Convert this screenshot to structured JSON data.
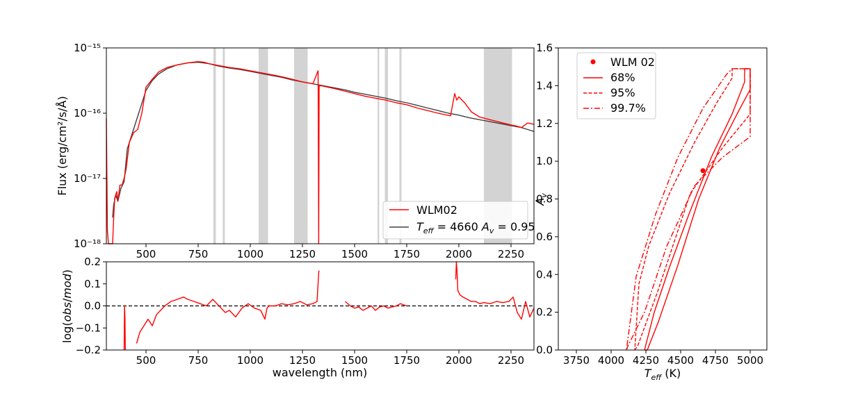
{
  "chart_data": [
    {
      "type": "line",
      "yscale": "log",
      "ylabel": "Flux (erg/cm²/s/Å)",
      "xlim": [
        310,
        2360
      ],
      "ylim_exp": [
        -18,
        -15
      ],
      "xticks": [
        500,
        750,
        1000,
        1250,
        1500,
        1750,
        2000,
        2250
      ],
      "ytick_labels": [
        "10⁻¹⁸",
        "10⁻¹⁷",
        "10⁻¹⁶",
        "10⁻¹⁵"
      ],
      "legend_loc": "lower-right",
      "masked_bands": [
        [
          823,
          835
        ],
        [
          868,
          878
        ],
        [
          1040,
          1085
        ],
        [
          1210,
          1275
        ],
        [
          1610,
          1618
        ],
        [
          1645,
          1660
        ],
        [
          1715,
          1725
        ],
        [
          2120,
          2255
        ]
      ],
      "series": [
        {
          "name": "WLM02",
          "color": "#ff0000",
          "x": [
            310,
            315,
            320,
            330,
            340,
            345,
            350,
            360,
            365,
            375,
            385,
            395,
            405,
            420,
            440,
            460,
            480,
            500,
            530,
            560,
            600,
            650,
            700,
            750,
            780,
            800,
            850,
            900,
            950,
            1000,
            1050,
            1100,
            1150,
            1200,
            1250,
            1300,
            1325,
            1328,
            1330,
            1332,
            1340,
            1400,
            1450,
            1500,
            1550,
            1600,
            1650,
            1700,
            1750,
            1800,
            1850,
            1900,
            1960,
            1980,
            1990,
            2000,
            2030,
            2060,
            2100,
            2150,
            2200,
            2250,
            2280,
            2300,
            2330,
            2360
          ],
          "y": [
            -16.08,
            -17.8,
            -18.0,
            -18.0,
            -18.0,
            -17.6,
            -17.3,
            -17.2,
            -17.35,
            -17.1,
            -17.1,
            -17.0,
            -16.85,
            -16.45,
            -16.3,
            -16.25,
            -16.0,
            -15.6,
            -15.48,
            -15.37,
            -15.3,
            -15.26,
            -15.23,
            -15.21,
            -15.22,
            -15.24,
            -15.27,
            -15.3,
            -15.32,
            -15.35,
            -15.38,
            -15.41,
            -15.44,
            -15.48,
            -15.52,
            -15.55,
            -15.35,
            -18.0,
            -15.58,
            -15.58,
            -15.58,
            -15.62,
            -15.66,
            -15.7,
            -15.74,
            -15.77,
            -15.8,
            -15.84,
            -15.87,
            -15.92,
            -15.96,
            -16.0,
            -16.04,
            -15.7,
            -15.8,
            -15.75,
            -15.85,
            -15.98,
            -16.06,
            -16.1,
            -16.14,
            -16.18,
            -16.2,
            -16.22,
            -16.15,
            -16.17
          ]
        },
        {
          "name": "T_eff = 4660 A_v = 0.95",
          "color": "#404040",
          "x": [
            340,
            345,
            355,
            365,
            380,
            395,
            410,
            430,
            450,
            470,
            500,
            530,
            560,
            600,
            650,
            700,
            750,
            800,
            850,
            900,
            950,
            1000,
            1050,
            1100,
            1150,
            1200,
            1250,
            1300,
            1350,
            1400,
            1450,
            1500,
            1550,
            1600,
            1650,
            1700,
            1750,
            1800,
            1850,
            1900,
            1950,
            2000,
            2050,
            2100,
            2150,
            2200,
            2250,
            2300,
            2330,
            2360
          ],
          "y": [
            -17.6,
            -17.4,
            -17.25,
            -17.35,
            -17.15,
            -17.05,
            -16.55,
            -16.35,
            -16.15,
            -15.95,
            -15.65,
            -15.5,
            -15.4,
            -15.32,
            -15.26,
            -15.23,
            -15.22,
            -15.24,
            -15.28,
            -15.31,
            -15.33,
            -15.36,
            -15.39,
            -15.42,
            -15.45,
            -15.49,
            -15.52,
            -15.55,
            -15.58,
            -15.61,
            -15.64,
            -15.68,
            -15.71,
            -15.74,
            -15.77,
            -15.81,
            -15.84,
            -15.88,
            -15.92,
            -15.96,
            -16.0,
            -16.03,
            -16.07,
            -16.1,
            -16.13,
            -16.16,
            -16.19,
            -16.22,
            -16.25,
            -16.28
          ]
        }
      ]
    },
    {
      "type": "line",
      "xlabel": "wavelength (nm)",
      "ylabel": "log(obs/mod)",
      "xlim": [
        310,
        2360
      ],
      "ylim": [
        -0.2,
        0.2
      ],
      "xticks": [
        500,
        750,
        1000,
        1250,
        1500,
        1750,
        2000,
        2250
      ],
      "yticks": [
        -0.2,
        -0.1,
        0.0,
        0.1,
        0.2
      ],
      "ytick_labels": [
        "−0.2",
        "−0.1",
        "0.0",
        "0.1",
        "0.2"
      ],
      "reference_line": 0.0,
      "series": [
        {
          "name": "",
          "color": "#ff0000",
          "segments": [
            {
              "x": [
                395,
                397,
                399,
                401
              ],
              "y": [
                -0.2,
                0.0,
                -0.05,
                -0.2
              ]
            },
            {
              "x": [
                455,
                470,
                490,
                510,
                530,
                550,
                570,
                590,
                620,
                650,
                680,
                700,
                730,
                760,
                790,
                820,
                850,
                880,
                900,
                930,
                960,
                990,
                1020,
                1050,
                1070,
                1080,
                1090,
                1120,
                1150,
                1180,
                1210,
                1240,
                1270,
                1300,
                1320,
                1328,
                1330
              ],
              "y": [
                -0.17,
                -0.12,
                -0.09,
                -0.06,
                -0.09,
                -0.04,
                -0.02,
                0.0,
                0.02,
                0.03,
                0.04,
                0.03,
                0.02,
                0.01,
                0.0,
                0.03,
                0.0,
                -0.03,
                -0.02,
                -0.05,
                -0.01,
                0.01,
                -0.01,
                -0.02,
                -0.06,
                -0.01,
                0.0,
                0.0,
                0.01,
                0.005,
                0.01,
                0.02,
                0.005,
                0.01,
                0.02,
                0.15,
                0.16
              ]
            },
            {
              "x": [
                1455,
                1480,
                1500,
                1520,
                1540,
                1560,
                1580,
                1600,
                1620,
                1640,
                1660,
                1680,
                1700,
                1720,
                1750
              ],
              "y": [
                0.02,
                0.0,
                -0.01,
                -0.005,
                -0.02,
                -0.01,
                0.0,
                -0.02,
                -0.005,
                0.0,
                -0.01,
                -0.005,
                0.0,
                0.01,
                0.0
              ]
            },
            {
              "x": [
                1985,
                1988,
                1991,
                1995,
                2005,
                2020,
                2040,
                2060,
                2080,
                2100,
                2120,
                2150,
                2180,
                2210,
                2240,
                2260,
                2280,
                2300,
                2320,
                2340,
                2360
              ],
              "y": [
                0.12,
                0.2,
                0.16,
                0.07,
                0.05,
                0.04,
                0.03,
                0.02,
                0.02,
                0.01,
                0.015,
                0.01,
                0.02,
                0.015,
                0.02,
                0.04,
                -0.03,
                -0.06,
                0.02,
                -0.05,
                -0.01
              ]
            }
          ]
        }
      ]
    },
    {
      "type": "line",
      "xlabel": "T_eff (K)",
      "ylabel": "A_v",
      "xlim": [
        3620,
        5120
      ],
      "ylim": [
        0.0,
        1.6
      ],
      "xticks": [
        3750,
        4000,
        4250,
        4500,
        4750,
        5000
      ],
      "yticks": [
        0.0,
        0.2,
        0.4,
        0.6,
        0.8,
        1.0,
        1.2,
        1.4,
        1.6
      ],
      "ytick_labels": [
        "0.0",
        "0.2",
        "0.4",
        "0.6",
        "0.8",
        "1.0",
        "1.2",
        "1.4",
        "1.6"
      ],
      "legend_loc": "upper-left",
      "series": [
        {
          "name": "WLM 02",
          "style": "point",
          "color": "#ff0000",
          "x": [
            4660
          ],
          "y": [
            0.95
          ]
        },
        {
          "name": "68%",
          "style": "solid",
          "color": "#ff0000",
          "x": [
            4240,
            4260,
            4340,
            4480,
            4630,
            4780,
            4920,
            5000,
            5000,
            4960,
            4960,
            4870,
            4720,
            4560,
            4420,
            4310,
            4240
          ],
          "y": [
            0.0,
            0.0,
            0.15,
            0.45,
            0.8,
            1.07,
            1.27,
            1.38,
            1.49,
            1.49,
            1.42,
            1.25,
            1.02,
            0.72,
            0.44,
            0.2,
            0.0
          ]
        },
        {
          "name": "95%",
          "style": "dashed",
          "color": "#ff0000",
          "x": [
            4170,
            4190,
            4240,
            4330,
            4570,
            4800,
            5000,
            5000,
            4870,
            4870,
            4760,
            4600,
            4420,
            4270,
            4200,
            4170
          ],
          "y": [
            0.0,
            0.02,
            0.12,
            0.3,
            0.83,
            1.07,
            1.25,
            1.49,
            1.49,
            1.44,
            1.31,
            1.1,
            0.83,
            0.55,
            0.35,
            0.0
          ]
        },
        {
          "name": "99.7%",
          "style": "dashdot",
          "color": "#ff0000",
          "x": [
            4110,
            4120,
            4160,
            4240,
            4400,
            4600,
            4800,
            5000,
            5000,
            4870,
            4830,
            4660,
            4480,
            4320,
            4180,
            4110
          ],
          "y": [
            0.0,
            0.02,
            0.08,
            0.2,
            0.55,
            0.87,
            1.02,
            1.13,
            1.49,
            1.49,
            1.46,
            1.28,
            1.02,
            0.72,
            0.39,
            0.0
          ]
        }
      ]
    }
  ],
  "legend_top": {
    "entries": [
      {
        "label": "WLM02"
      }
    ]
  },
  "legend_ci": {
    "entries": [
      {
        "label": "WLM 02"
      },
      {
        "label": "68%"
      },
      {
        "label": "95%"
      },
      {
        "label": "99.7%"
      }
    ]
  }
}
